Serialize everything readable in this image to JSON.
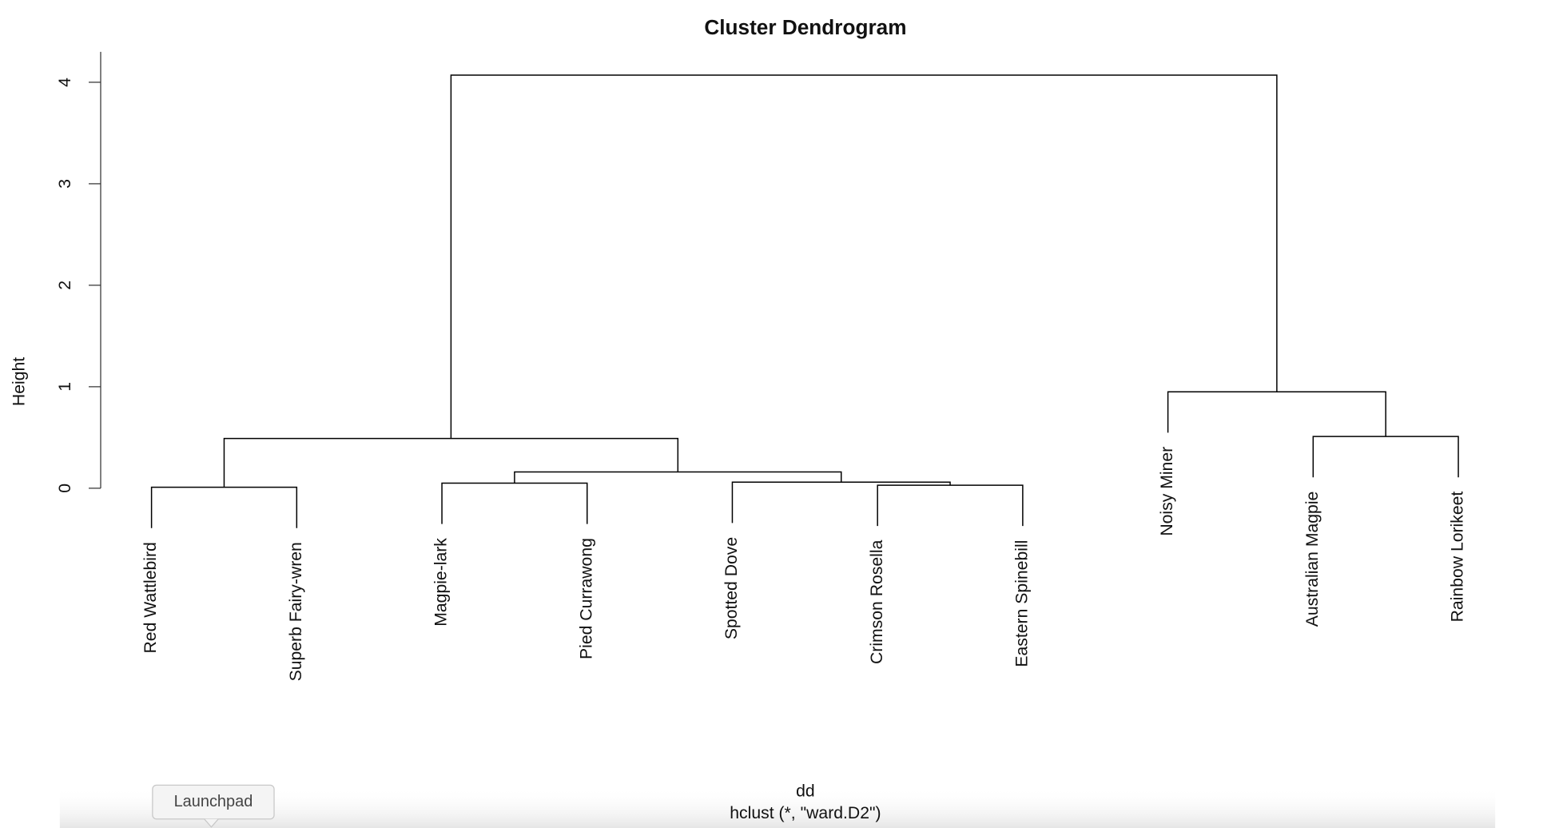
{
  "chart_data": {
    "type": "dendrogram",
    "title": "Cluster Dendrogram",
    "ylabel": "Height",
    "xlabel": "dd",
    "subtitle": "hclust (*, \"ward.D2\")",
    "labels": [
      "Red Wattlebird",
      "Superb Fairy-wren",
      "Magpie-lark",
      "Pied Currawong",
      "Spotted Dove",
      "Crimson Rosella",
      "Eastern Spinebill",
      "Noisy Miner",
      "Australian Magpie",
      "Rainbow Lorikeet"
    ],
    "merges": [
      {
        "pair": [
          -1,
          -2
        ],
        "height": 0.01
      },
      {
        "pair": [
          -6,
          -7
        ],
        "height": 0.03
      },
      {
        "pair": [
          -3,
          -4
        ],
        "height": 0.05
      },
      {
        "pair": [
          -5,
          2
        ],
        "height": 0.06
      },
      {
        "pair": [
          3,
          4
        ],
        "height": 0.16
      },
      {
        "pair": [
          1,
          5
        ],
        "height": 0.49
      },
      {
        "pair": [
          -9,
          -10
        ],
        "height": 0.51
      },
      {
        "pair": [
          -8,
          7
        ],
        "height": 0.95
      },
      {
        "pair": [
          6,
          8
        ],
        "height": 4.07
      }
    ],
    "ylim": [
      0,
      4.3
    ],
    "yticks": [
      0,
      1,
      2,
      3,
      4
    ],
    "color": "#000000"
  },
  "overlay": {
    "tooltip": "Launchpad"
  }
}
